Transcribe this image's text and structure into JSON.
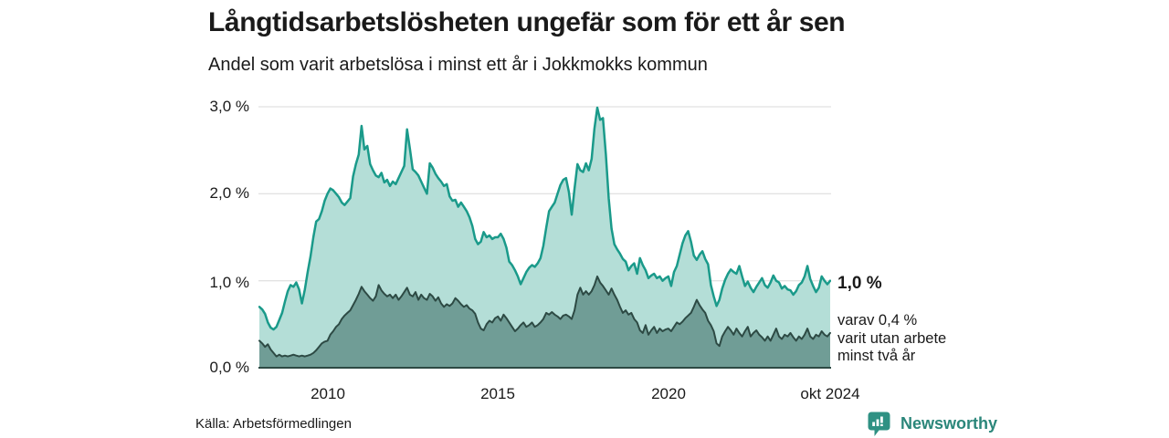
{
  "header": {
    "title": "Långtidsarbetslösheten ungefär som för ett år sen",
    "subtitle": "Andel som varit arbetslösa i minst ett år i Jokkmokks kommun"
  },
  "end_labels": {
    "total_value": "1,0 %",
    "secondary_line1": "varav 0,4 %",
    "secondary_line2": "varit utan arbete",
    "secondary_line3": "minst två år"
  },
  "footer": {
    "source": "Källa: Arbetsförmedlingen",
    "brand": "Newsworthy"
  },
  "colors": {
    "total_line": "#1a9a8a",
    "total_fill": "#b4ded7",
    "two_year_line": "#2d4a44",
    "two_year_fill": "#709d96",
    "gridline": "#d8d8d8",
    "axis_line": "#2d4a44",
    "brand_teal": "#2b867a",
    "text": "#1a1a1a"
  },
  "chart_data": {
    "type": "area",
    "title": "Långtidsarbetslösheten ungefär som för ett år sen",
    "subtitle": "Andel som varit arbetslösa i minst ett år i Jokkmokks kommun",
    "unit": "%",
    "frequency": "monthly",
    "x_start": "2008-01",
    "x_end": "2024-10",
    "ylim": [
      0,
      3
    ],
    "grid": "horizontal",
    "legend_position": "none",
    "yticks": [
      "3,0 %",
      "2,0 %",
      "1,0 %",
      "0,0 %"
    ],
    "xticks": [
      {
        "label": "2010",
        "month_index": 24
      },
      {
        "label": "2015",
        "month_index": 84
      },
      {
        "label": "2020",
        "month_index": 144
      },
      {
        "label": "okt 2024",
        "month_index": 201
      }
    ],
    "series": [
      {
        "name": "Andel arbetslösa minst ett år",
        "latest_label": "1,0 %",
        "line_color": "#1a9a8a",
        "fill_color": "#b4ded7",
        "values": [
          0.7,
          0.67,
          0.62,
          0.52,
          0.46,
          0.44,
          0.47,
          0.55,
          0.63,
          0.76,
          0.88,
          0.95,
          0.93,
          0.98,
          0.9,
          0.74,
          0.9,
          1.1,
          1.28,
          1.5,
          1.68,
          1.71,
          1.8,
          1.92,
          2.0,
          2.06,
          2.04,
          2.0,
          1.96,
          1.9,
          1.87,
          1.91,
          1.95,
          2.2,
          2.34,
          2.45,
          2.78,
          2.51,
          2.55,
          2.34,
          2.27,
          2.21,
          2.19,
          2.24,
          2.13,
          2.16,
          2.09,
          2.14,
          2.11,
          2.18,
          2.25,
          2.32,
          2.74,
          2.52,
          2.28,
          2.25,
          2.21,
          2.14,
          2.07,
          2.0,
          2.35,
          2.3,
          2.23,
          2.18,
          2.14,
          2.09,
          2.11,
          1.97,
          1.92,
          1.93,
          1.85,
          1.9,
          1.85,
          1.8,
          1.73,
          1.63,
          1.48,
          1.42,
          1.45,
          1.56,
          1.5,
          1.52,
          1.48,
          1.5,
          1.5,
          1.54,
          1.48,
          1.38,
          1.22,
          1.18,
          1.12,
          1.05,
          0.96,
          1.03,
          1.1,
          1.15,
          1.18,
          1.16,
          1.2,
          1.26,
          1.4,
          1.61,
          1.8,
          1.85,
          1.9,
          2.0,
          2.1,
          2.16,
          2.18,
          2.02,
          1.76,
          2.06,
          2.34,
          2.27,
          2.25,
          2.35,
          2.27,
          2.4,
          2.75,
          2.99,
          2.85,
          2.87,
          2.45,
          1.95,
          1.6,
          1.42,
          1.36,
          1.31,
          1.25,
          1.22,
          1.12,
          1.17,
          1.2,
          1.08,
          1.26,
          1.18,
          1.12,
          1.03,
          1.06,
          1.08,
          1.03,
          1.05,
          1.0,
          1.03,
          1.05,
          0.94,
          1.1,
          1.17,
          1.3,
          1.43,
          1.52,
          1.57,
          1.45,
          1.29,
          1.24,
          1.3,
          1.34,
          1.25,
          1.19,
          0.95,
          0.82,
          0.71,
          0.78,
          0.91,
          1.01,
          1.08,
          1.13,
          1.1,
          1.08,
          1.17,
          1.05,
          0.94,
          0.99,
          0.92,
          0.87,
          0.93,
          0.98,
          1.03,
          0.95,
          0.92,
          0.98,
          1.06,
          1.0,
          0.98,
          0.91,
          0.94,
          0.9,
          0.89,
          0.84,
          0.88,
          0.95,
          0.98,
          1.05,
          1.17,
          1.02,
          0.94,
          0.87,
          0.92,
          1.05,
          1.0,
          0.96,
          1.0
        ]
      },
      {
        "name": "varav utan arbete minst två år",
        "latest_label": "0,4 %",
        "line_color": "#2d4a44",
        "fill_color": "#709d96",
        "values": [
          0.31,
          0.28,
          0.24,
          0.27,
          0.21,
          0.17,
          0.13,
          0.15,
          0.13,
          0.14,
          0.13,
          0.14,
          0.15,
          0.14,
          0.13,
          0.14,
          0.13,
          0.14,
          0.15,
          0.17,
          0.2,
          0.24,
          0.28,
          0.3,
          0.31,
          0.38,
          0.42,
          0.47,
          0.5,
          0.56,
          0.6,
          0.63,
          0.66,
          0.72,
          0.78,
          0.85,
          0.93,
          0.88,
          0.84,
          0.8,
          0.77,
          0.82,
          0.95,
          0.89,
          0.85,
          0.82,
          0.84,
          0.8,
          0.84,
          0.78,
          0.82,
          0.87,
          0.92,
          0.84,
          0.82,
          0.87,
          0.78,
          0.84,
          0.8,
          0.78,
          0.85,
          0.82,
          0.77,
          0.81,
          0.74,
          0.7,
          0.73,
          0.71,
          0.74,
          0.8,
          0.77,
          0.73,
          0.7,
          0.72,
          0.68,
          0.66,
          0.62,
          0.52,
          0.45,
          0.43,
          0.5,
          0.54,
          0.52,
          0.57,
          0.59,
          0.54,
          0.61,
          0.57,
          0.52,
          0.47,
          0.42,
          0.45,
          0.49,
          0.52,
          0.47,
          0.49,
          0.52,
          0.47,
          0.49,
          0.52,
          0.56,
          0.63,
          0.61,
          0.64,
          0.61,
          0.59,
          0.56,
          0.6,
          0.61,
          0.59,
          0.56,
          0.66,
          0.84,
          0.92,
          0.84,
          0.88,
          0.84,
          0.88,
          0.95,
          1.05,
          0.98,
          0.94,
          0.89,
          0.84,
          0.91,
          0.84,
          0.78,
          0.7,
          0.63,
          0.66,
          0.61,
          0.63,
          0.56,
          0.52,
          0.43,
          0.4,
          0.49,
          0.38,
          0.43,
          0.47,
          0.4,
          0.45,
          0.42,
          0.44,
          0.45,
          0.42,
          0.47,
          0.52,
          0.5,
          0.53,
          0.57,
          0.6,
          0.63,
          0.7,
          0.78,
          0.72,
          0.67,
          0.63,
          0.54,
          0.49,
          0.42,
          0.28,
          0.25,
          0.36,
          0.42,
          0.47,
          0.43,
          0.38,
          0.45,
          0.4,
          0.36,
          0.42,
          0.47,
          0.36,
          0.4,
          0.43,
          0.38,
          0.35,
          0.31,
          0.36,
          0.31,
          0.38,
          0.45,
          0.36,
          0.33,
          0.38,
          0.36,
          0.4,
          0.35,
          0.31,
          0.36,
          0.33,
          0.38,
          0.45,
          0.36,
          0.33,
          0.38,
          0.36,
          0.42,
          0.38,
          0.36,
          0.4
        ]
      }
    ]
  }
}
